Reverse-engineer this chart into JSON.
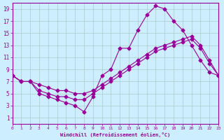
{
  "xlabel": "Windchill (Refroidissement éolien,°C)",
  "ylabel": "",
  "bg_color": "#cceeff",
  "line_color": "#990099",
  "grid_color": "#aacccc",
  "xlim": [
    0,
    23
  ],
  "ylim": [
    0,
    20
  ],
  "xticks": [
    0,
    1,
    2,
    3,
    4,
    5,
    6,
    7,
    8,
    9,
    10,
    11,
    12,
    13,
    14,
    15,
    16,
    17,
    18,
    19,
    20,
    21,
    22,
    23
  ],
  "yticks": [
    1,
    3,
    5,
    7,
    9,
    11,
    13,
    15,
    17,
    19
  ],
  "line1_x": [
    0,
    1,
    2,
    3,
    4,
    5,
    6,
    7,
    8,
    9,
    10,
    11,
    12,
    13,
    14,
    15,
    16,
    17,
    18,
    19,
    20,
    21,
    22,
    23
  ],
  "line1_y": [
    8,
    7,
    7,
    5,
    4.5,
    4,
    3.5,
    3,
    2,
    4.5,
    8,
    9,
    12.5,
    12.5,
    15.5,
    18,
    19.5,
    19,
    17,
    15.5,
    13,
    10.5,
    8.5,
    8
  ],
  "line2_x": [
    0,
    1,
    2,
    3,
    4,
    5,
    6,
    7,
    8,
    9,
    10,
    11,
    12,
    13,
    14,
    15,
    16,
    17,
    18,
    19,
    20,
    21,
    22,
    23
  ],
  "line2_y": [
    8,
    7,
    7,
    6.5,
    6,
    5.5,
    5.5,
    5,
    5,
    5.5,
    6.5,
    7.5,
    8.5,
    9.5,
    10.5,
    11.5,
    12.5,
    13,
    13.5,
    14,
    14.5,
    13,
    10.5,
    8
  ],
  "line3_x": [
    0,
    1,
    2,
    3,
    4,
    5,
    6,
    7,
    8,
    9,
    10,
    11,
    12,
    13,
    14,
    15,
    16,
    17,
    18,
    19,
    20,
    21,
    22,
    23
  ],
  "line3_y": [
    8,
    7,
    7,
    5.5,
    5,
    4.5,
    4.5,
    4,
    4,
    5,
    6,
    7,
    8,
    9,
    10,
    11,
    12,
    12.5,
    13,
    13.5,
    14,
    12.5,
    10,
    8
  ]
}
